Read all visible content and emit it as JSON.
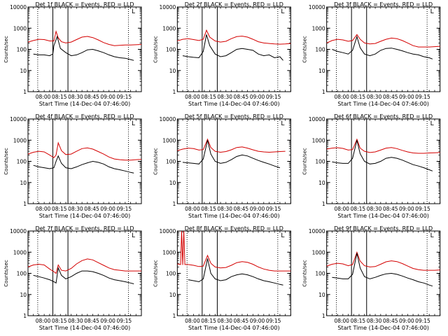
{
  "colors": {
    "events": "#000000",
    "lld": "#d40000",
    "axis": "#000000",
    "background": "#ffffff"
  },
  "ylabel": "Counts/sec",
  "xlabel": "Start Time (14-Dec-04 07:46:00)",
  "y_ticks": [
    1,
    10,
    100,
    1000,
    10000
  ],
  "y_tick_labels": [
    "1",
    "10",
    "100",
    "1000",
    "10000"
  ],
  "x_tick_labels": [
    "08:00",
    "08:15",
    "08:30",
    "08:45",
    "09:00",
    "09:15"
  ],
  "x_tick_minutes": [
    14,
    29,
    44,
    59,
    74,
    89
  ],
  "corner_mark": "L",
  "chart_data": [
    {
      "type": "line",
      "title": "Det 1f BLACK = Events, RED = LLD",
      "xlabel": "Start Time (14-Dec-04 07:46:00)",
      "ylabel": "Counts/sec",
      "y_scale": "log",
      "ylim": [
        1,
        10000
      ],
      "x_unit": "minutes after 07:46:00",
      "xlim": [
        0,
        105
      ],
      "dotted_lines_x": [
        9,
        93
      ],
      "solid_lines_x": [
        23,
        37
      ],
      "series": [
        {
          "name": "RED = LLD",
          "x": [
            0,
            5,
            10,
            15,
            20,
            24,
            26,
            28,
            31,
            35,
            40,
            45,
            50,
            55,
            60,
            65,
            70,
            75,
            80,
            85,
            90,
            95,
            100,
            105
          ],
          "y": [
            220,
            260,
            300,
            290,
            250,
            250,
            700,
            350,
            230,
            200,
            220,
            290,
            380,
            410,
            360,
            280,
            210,
            170,
            150,
            155,
            160,
            160,
            165,
            170
          ]
        },
        {
          "name": "BLACK = Events",
          "x": [
            5,
            10,
            15,
            20,
            23,
            24,
            27,
            30,
            35,
            40,
            45,
            50,
            55,
            60,
            65,
            70,
            75,
            80,
            85,
            90,
            95,
            98
          ],
          "y": [
            60,
            55,
            55,
            50,
            60,
            150,
            400,
            110,
            70,
            50,
            55,
            70,
            95,
            100,
            85,
            70,
            55,
            45,
            40,
            38,
            33,
            30
          ]
        }
      ]
    },
    {
      "type": "line",
      "title": "Det 2f BLACK = Events, RED = LLD",
      "xlabel": "Start Time (14-Dec-04 07:46:00)",
      "ylabel": "Counts/sec",
      "y_scale": "log",
      "ylim": [
        1,
        10000
      ],
      "x_unit": "minutes after 07:46:00",
      "xlim": [
        0,
        105
      ],
      "dotted_lines_x": [
        9,
        93
      ],
      "solid_lines_x": [
        23,
        37
      ],
      "series": [
        {
          "name": "RED = LLD",
          "x": [
            0,
            5,
            10,
            15,
            20,
            24,
            27,
            30,
            35,
            40,
            45,
            50,
            55,
            60,
            65,
            70,
            75,
            80,
            85,
            90,
            95,
            100,
            105
          ],
          "y": [
            250,
            300,
            320,
            290,
            260,
            300,
            800,
            380,
            250,
            220,
            240,
            320,
            400,
            420,
            380,
            300,
            230,
            200,
            190,
            180,
            175,
            180,
            190
          ]
        },
        {
          "name": "BLACK = Events",
          "x": [
            5,
            10,
            15,
            20,
            24,
            27,
            30,
            35,
            40,
            45,
            50,
            55,
            60,
            65,
            70,
            75,
            80,
            85,
            90,
            95,
            98
          ],
          "y": [
            50,
            45,
            42,
            40,
            80,
            500,
            150,
            60,
            45,
            50,
            70,
            100,
            110,
            100,
            90,
            60,
            50,
            55,
            40,
            45,
            30
          ]
        }
      ]
    },
    {
      "type": "line",
      "title": "Det 3f BLACK = Events, RED = LLD",
      "xlabel": "Start Time (14-Dec-04 07:46:00)",
      "ylabel": "Counts/sec",
      "y_scale": "log",
      "ylim": [
        1,
        10000
      ],
      "x_unit": "minutes after 07:46:00",
      "xlim": [
        0,
        105
      ],
      "dotted_lines_x": [
        9,
        93
      ],
      "solid_lines_x": [
        23,
        37
      ],
      "series": [
        {
          "name": "RED = LLD",
          "x": [
            0,
            5,
            10,
            15,
            20,
            24,
            28,
            31,
            35,
            40,
            45,
            50,
            55,
            60,
            65,
            70,
            75,
            80,
            85,
            90,
            95,
            100,
            105
          ],
          "y": [
            200,
            260,
            300,
            280,
            240,
            260,
            500,
            300,
            200,
            180,
            190,
            240,
            300,
            340,
            320,
            260,
            200,
            150,
            130,
            130,
            130,
            135,
            140
          ]
        },
        {
          "name": "BLACK = Events",
          "x": [
            5,
            10,
            15,
            20,
            24,
            28,
            31,
            35,
            40,
            45,
            50,
            55,
            60,
            65,
            70,
            75,
            80,
            85,
            90,
            95,
            98
          ],
          "y": [
            100,
            80,
            70,
            60,
            90,
            400,
            120,
            60,
            50,
            60,
            90,
            110,
            115,
            100,
            85,
            70,
            60,
            55,
            45,
            40,
            35
          ]
        }
      ]
    },
    {
      "type": "line",
      "title": "Det 4f BLACK = Events, RED = LLD",
      "xlabel": "Start Time (14-Dec-04 07:46:00)",
      "ylabel": "Counts/sec",
      "y_scale": "log",
      "ylim": [
        1,
        10000
      ],
      "x_unit": "minutes after 07:46:00",
      "xlim": [
        0,
        105
      ],
      "dotted_lines_x": [
        9,
        93
      ],
      "solid_lines_x": [
        23,
        37
      ],
      "series": [
        {
          "name": "RED = LLD",
          "x": [
            0,
            5,
            10,
            15,
            20,
            24,
            26,
            28,
            31,
            35,
            40,
            45,
            50,
            55,
            60,
            65,
            70,
            75,
            80,
            85,
            90,
            95,
            100,
            105
          ],
          "y": [
            220,
            270,
            300,
            280,
            200,
            150,
            200,
            750,
            320,
            210,
            220,
            300,
            400,
            430,
            380,
            290,
            220,
            160,
            130,
            120,
            115,
            115,
            120,
            125
          ]
        },
        {
          "name": "BLACK = Events",
          "x": [
            5,
            10,
            15,
            20,
            24,
            26,
            28,
            31,
            35,
            40,
            45,
            50,
            55,
            60,
            65,
            70,
            75,
            80,
            85,
            90,
            95,
            98
          ],
          "y": [
            65,
            55,
            50,
            45,
            50,
            100,
            180,
            80,
            50,
            45,
            55,
            70,
            85,
            100,
            90,
            75,
            55,
            45,
            40,
            35,
            30,
            28
          ]
        }
      ]
    },
    {
      "type": "line",
      "title": "Det 5f BLACK = Events, RED = LLD",
      "xlabel": "Start Time (14-Dec-04 07:46:00)",
      "ylabel": "Counts/sec",
      "y_scale": "log",
      "ylim": [
        1,
        10000
      ],
      "x_unit": "minutes after 07:46:00",
      "xlim": [
        0,
        105
      ],
      "dotted_lines_x": [
        9,
        93
      ],
      "solid_lines_x": [
        23,
        37
      ],
      "series": [
        {
          "name": "RED = LLD",
          "x": [
            0,
            5,
            10,
            15,
            20,
            24,
            28,
            31,
            35,
            40,
            45,
            50,
            55,
            60,
            65,
            70,
            75,
            80,
            85,
            90,
            95,
            100
          ],
          "y": [
            320,
            380,
            420,
            400,
            340,
            360,
            1100,
            450,
            300,
            270,
            290,
            350,
            450,
            480,
            420,
            350,
            300,
            280,
            270,
            280,
            290,
            300
          ]
        },
        {
          "name": "BLACK = Events",
          "x": [
            5,
            10,
            15,
            20,
            24,
            28,
            31,
            35,
            40,
            45,
            50,
            55,
            60,
            65,
            70,
            75,
            80,
            85,
            90,
            95
          ],
          "y": [
            90,
            85,
            80,
            75,
            130,
            1000,
            220,
            100,
            80,
            90,
            120,
            170,
            200,
            180,
            140,
            110,
            90,
            75,
            60,
            50
          ]
        }
      ]
    },
    {
      "type": "line",
      "title": "Det 6f BLACK = Events, RED = LLD",
      "xlabel": "Start Time (14-Dec-04 07:46:00)",
      "ylabel": "Counts/sec",
      "y_scale": "log",
      "ylim": [
        1,
        10000
      ],
      "x_unit": "minutes after 07:46:00",
      "xlim": [
        0,
        105
      ],
      "dotted_lines_x": [
        9,
        93
      ],
      "solid_lines_x": [
        23,
        37
      ],
      "series": [
        {
          "name": "RED = LLD",
          "x": [
            0,
            5,
            10,
            15,
            20,
            24,
            28,
            31,
            35,
            40,
            45,
            50,
            55,
            60,
            65,
            70,
            75,
            80,
            85,
            90,
            95,
            100,
            105
          ],
          "y": [
            380,
            420,
            440,
            410,
            340,
            360,
            1100,
            420,
            300,
            260,
            280,
            340,
            420,
            450,
            400,
            330,
            280,
            250,
            240,
            240,
            250,
            255,
            260
          ]
        },
        {
          "name": "BLACK = Events",
          "x": [
            5,
            10,
            15,
            20,
            24,
            28,
            31,
            35,
            40,
            45,
            50,
            55,
            60,
            65,
            70,
            75,
            80,
            85,
            90,
            95,
            98
          ],
          "y": [
            95,
            85,
            80,
            80,
            140,
            1000,
            230,
            100,
            75,
            80,
            100,
            140,
            155,
            140,
            115,
            90,
            70,
            60,
            50,
            40,
            35
          ]
        }
      ]
    },
    {
      "type": "line",
      "title": "Det 7f BLACK = Events, RED = LLD",
      "xlabel": "Start Time (14-Dec-04 07:46:00)",
      "ylabel": "Counts/sec",
      "y_scale": "log",
      "ylim": [
        1,
        10000
      ],
      "x_unit": "minutes after 07:46:00",
      "xlim": [
        0,
        105
      ],
      "dotted_lines_x": [
        9,
        93
      ],
      "solid_lines_x": [
        23,
        37
      ],
      "series": [
        {
          "name": "RED = LLD",
          "x": [
            0,
            5,
            10,
            15,
            20,
            24,
            26,
            28,
            31,
            35,
            40,
            45,
            50,
            55,
            60,
            65,
            70,
            75,
            80,
            85,
            90,
            95,
            100,
            105
          ],
          "y": [
            200,
            250,
            270,
            250,
            160,
            120,
            100,
            250,
            140,
            130,
            170,
            280,
            400,
            480,
            430,
            320,
            240,
            180,
            150,
            140,
            130,
            130,
            130,
            130
          ]
        },
        {
          "name": "BLACK = Events",
          "x": [
            5,
            10,
            15,
            20,
            24,
            26,
            28,
            31,
            35,
            40,
            45,
            50,
            55,
            60,
            65,
            70,
            75,
            80,
            85,
            90,
            95,
            98
          ],
          "y": [
            80,
            70,
            60,
            50,
            40,
            35,
            180,
            80,
            55,
            70,
            100,
            130,
            130,
            120,
            100,
            80,
            60,
            50,
            45,
            40,
            35,
            32
          ]
        }
      ]
    },
    {
      "type": "line",
      "title": "Det 8f BLACK = Events, RED = LLD",
      "xlabel": "Start Time (14-Dec-04 07:46:00)",
      "ylabel": "Counts/sec",
      "y_scale": "log",
      "ylim": [
        1,
        10000
      ],
      "x_unit": "minutes after 07:46:00",
      "xlim": [
        0,
        105
      ],
      "dotted_lines_x": [
        9,
        93
      ],
      "solid_lines_x": [
        23,
        37
      ],
      "series": [
        {
          "name": "RED = LLD",
          "x": [
            0,
            3,
            4,
            5,
            6,
            7,
            10,
            15,
            20,
            24,
            28,
            31,
            35,
            40,
            45,
            50,
            55,
            60,
            65,
            70,
            75,
            80,
            85,
            90,
            95,
            100,
            105
          ],
          "y": [
            280,
            260,
            10000,
            250,
            10000,
            260,
            260,
            240,
            210,
            220,
            700,
            300,
            200,
            180,
            190,
            240,
            320,
            360,
            330,
            270,
            200,
            160,
            140,
            130,
            130,
            130,
            130
          ]
        },
        {
          "name": "BLACK = Events",
          "x": [
            10,
            15,
            20,
            24,
            28,
            31,
            35,
            40,
            45,
            50,
            55,
            60,
            65,
            70,
            75,
            80,
            85,
            90,
            95,
            98
          ],
          "y": [
            50,
            45,
            40,
            55,
            500,
            100,
            55,
            45,
            50,
            70,
            85,
            95,
            85,
            70,
            55,
            45,
            40,
            35,
            30,
            28
          ]
        }
      ]
    },
    {
      "type": "line",
      "title": "Det 9f BLACK = Events, RED = LLD",
      "xlabel": "Start Time (14-Dec-04 07:46:00)",
      "ylabel": "Counts/sec",
      "y_scale": "log",
      "ylim": [
        1,
        10000
      ],
      "x_unit": "minutes after 07:46:00",
      "xlim": [
        0,
        105
      ],
      "dotted_lines_x": [
        9,
        93
      ],
      "solid_lines_x": [
        23,
        37
      ],
      "series": [
        {
          "name": "RED = LLD",
          "x": [
            0,
            5,
            10,
            15,
            20,
            24,
            28,
            31,
            35,
            40,
            45,
            50,
            55,
            60,
            65,
            70,
            75,
            80,
            85,
            90,
            95,
            100,
            105
          ],
          "y": [
            220,
            270,
            300,
            280,
            230,
            260,
            1000,
            380,
            230,
            200,
            210,
            270,
            350,
            390,
            360,
            290,
            220,
            170,
            150,
            140,
            140,
            140,
            145
          ]
        },
        {
          "name": "BLACK = Events",
          "x": [
            5,
            10,
            15,
            20,
            24,
            28,
            31,
            35,
            40,
            45,
            50,
            55,
            60,
            65,
            70,
            75,
            80,
            85,
            90,
            95,
            98
          ],
          "y": [
            65,
            60,
            55,
            55,
            90,
            900,
            180,
            70,
            55,
            65,
            80,
            95,
            100,
            90,
            75,
            60,
            50,
            40,
            35,
            28,
            25
          ]
        }
      ]
    }
  ]
}
